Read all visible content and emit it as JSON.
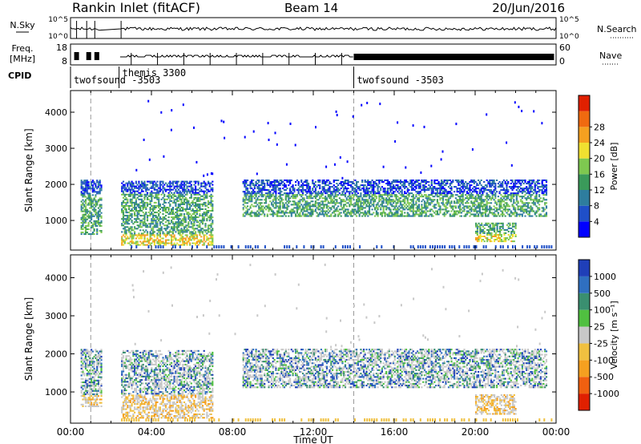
{
  "header": {
    "station": "Rankin Inlet (fitACF)",
    "beam": "Beam 14",
    "date": "20/Jun/2016"
  },
  "summary": {
    "nsky_label": "N.Sky",
    "nsearch_label": "N.Search",
    "freq_label_1": "Freq.",
    "freq_label_2": "[MHz]",
    "nave_label": "Nave",
    "cpid_label": "CPID",
    "left_ticks_top": [
      "10^5",
      "10^0"
    ],
    "right_ticks_top": [
      "10^5",
      "10^0"
    ],
    "left_ticks_freq": [
      "18",
      "8"
    ],
    "right_ticks_nave": [
      "60",
      "0"
    ],
    "cpid_segments": [
      {
        "name": "twofsound -3503",
        "start_hour": 0.0
      },
      {
        "name": "themis 3300",
        "start_hour": 2.4
      },
      {
        "name": "twofsound -3503",
        "start_hour": 14.0
      }
    ]
  },
  "chart_data": [
    {
      "type": "heatmap",
      "title": "Power",
      "ylabel": "Slant Range [km]",
      "ylim": [
        180,
        4600
      ],
      "yticks": [
        "1000",
        "2000",
        "3000",
        "4000"
      ],
      "xlim": [
        0,
        24
      ],
      "colorbar": {
        "label": "Power [dB]",
        "ticks": [
          "4",
          "8",
          "12",
          "16",
          "20",
          "24",
          "28"
        ],
        "colors": [
          "#0000ff",
          "#1f4fc8",
          "#2e7d9e",
          "#3a9a5a",
          "#7ec850",
          "#f0e030",
          "#f5a020",
          "#f06a10",
          "#e02000"
        ]
      },
      "echo_bands": [
        {
          "from_hour": 0.5,
          "to_hour": 1.5,
          "range_km": [
            600,
            2100
          ]
        },
        {
          "from_hour": 2.5,
          "to_hour": 7.0,
          "range_km": [
            300,
            2100
          ]
        },
        {
          "from_hour": 8.5,
          "to_hour": 23.5,
          "range_km": [
            1100,
            2100
          ]
        },
        {
          "from_hour": 20.0,
          "to_hour": 22.0,
          "range_km": [
            400,
            900
          ]
        }
      ]
    },
    {
      "type": "heatmap",
      "title": "Velocity",
      "ylabel": "Slant Range [km]",
      "ylim": [
        180,
        4600
      ],
      "yticks": [
        "1000",
        "2000",
        "3000",
        "4000"
      ],
      "xlim": [
        0,
        24
      ],
      "xticks": [
        "00:00",
        "04:00",
        "08:00",
        "12:00",
        "16:00",
        "20:00",
        "00:00"
      ],
      "xlabel": "Time UT",
      "colorbar": {
        "label": "Velocity [m s⁻¹]",
        "ticks": [
          "1000",
          "500",
          "100",
          "25",
          "-25",
          "-100",
          "-500",
          "-1000"
        ],
        "colors": [
          "#1f3fb8",
          "#2f6fc0",
          "#3a8f70",
          "#50c040",
          "#c8c8c8",
          "#f0c040",
          "#f5a020",
          "#f06010",
          "#e02000"
        ]
      },
      "echo_bands": [
        {
          "from_hour": 0.5,
          "to_hour": 1.5,
          "range_km": [
            600,
            2100
          ]
        },
        {
          "from_hour": 2.5,
          "to_hour": 7.0,
          "range_km": [
            300,
            2100
          ]
        },
        {
          "from_hour": 8.5,
          "to_hour": 23.5,
          "range_km": [
            1100,
            2100
          ]
        },
        {
          "from_hour": 20.0,
          "to_hour": 22.0,
          "range_km": [
            400,
            900
          ]
        }
      ]
    }
  ]
}
